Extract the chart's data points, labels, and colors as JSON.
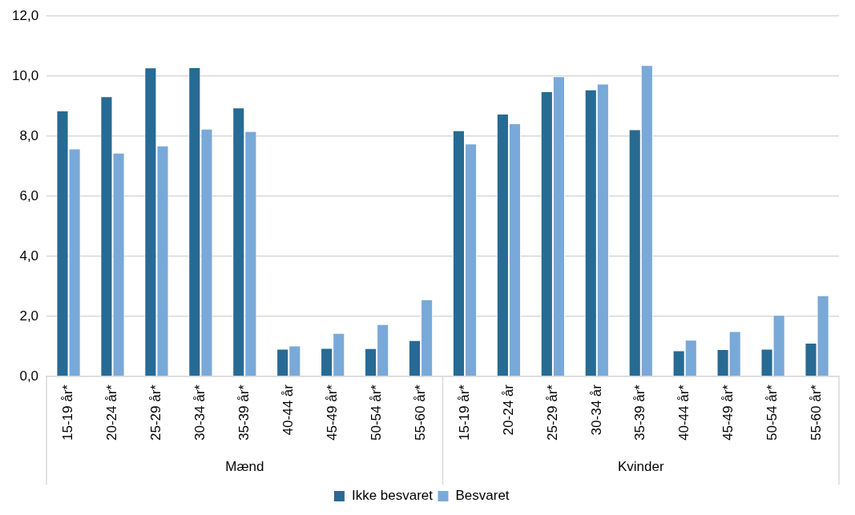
{
  "chart_data": {
    "type": "bar",
    "categories": [
      "15-19 år*",
      "20-24 år*",
      "25-29 år*",
      "30-34 år*",
      "35-39 år*",
      "40-44 år",
      "45-49 år*",
      "50-54 år*",
      "55-60 år*",
      "15-19 år*",
      "20-24 år",
      "25-29 år*",
      "30-34 år",
      "35-39 år*",
      "40-44 år*",
      "45-49 år*",
      "50-54 år*",
      "55-60 år*"
    ],
    "series": [
      {
        "name": "Ikke besvaret",
        "color": "#276a93",
        "values": [
          8.86,
          9.33,
          10.29,
          10.3,
          8.96,
          0.92,
          0.95,
          0.94,
          1.21,
          8.2,
          8.75,
          9.5,
          9.56,
          8.23,
          0.87,
          0.91,
          0.92,
          1.12
        ]
      },
      {
        "name": "Besvaret",
        "color": "#79a9d8",
        "values": [
          7.59,
          7.45,
          7.69,
          8.25,
          8.17,
          1.03,
          1.45,
          1.74,
          2.57,
          7.76,
          8.43,
          10.0,
          9.75,
          10.37,
          1.22,
          1.51,
          2.05,
          2.7
        ]
      }
    ],
    "annotations": [
      "Mænd",
      "Kvinder"
    ],
    "ylim": [
      0,
      12
    ],
    "yticks": [
      {
        "value": 0,
        "label": "0,0"
      },
      {
        "value": 2,
        "label": "2,0"
      },
      {
        "value": 4,
        "label": "4,0"
      },
      {
        "value": 6,
        "label": "6,0"
      },
      {
        "value": 8,
        "label": "8,0"
      },
      {
        "value": 10,
        "label": "10,0"
      },
      {
        "value": 12,
        "label": "12,0"
      }
    ],
    "grid": "y",
    "legend": "bottom"
  }
}
